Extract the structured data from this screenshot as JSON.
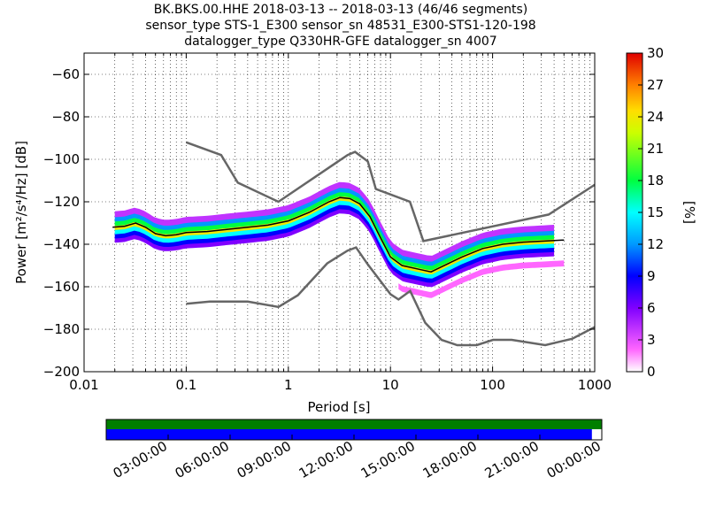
{
  "chart_data": {
    "type": "heatmap",
    "title_lines": [
      "BK.BKS.00.HHE   2018-03-13 -- 2018-03-13  (46/46 segments)",
      "sensor_type STS-1_E300 sensor_sn 48531_E300-STS1-120-198",
      "datalogger_type Q330HR-GFE datalogger_sn 4007"
    ],
    "xlabel": "Period [s]",
    "ylabel": "Power [m²/s⁴/Hz] [dB]",
    "x_scale": "log",
    "xlim": [
      0.01,
      1000
    ],
    "ylim": [
      -200,
      -50
    ],
    "x_ticks": [
      {
        "value": 0.01,
        "label": "0.01"
      },
      {
        "value": 0.1,
        "label": "0.1"
      },
      {
        "value": 1,
        "label": "1"
      },
      {
        "value": 10,
        "label": "10"
      },
      {
        "value": 100,
        "label": "100"
      },
      {
        "value": 1000,
        "label": "1000"
      }
    ],
    "y_ticks": [
      -60,
      -80,
      -100,
      -120,
      -140,
      -160,
      -180,
      -200
    ],
    "grid": "dotted",
    "colorbar": {
      "label": "[%]",
      "range": [
        0,
        30
      ],
      "ticks": [
        0,
        3,
        6,
        9,
        12,
        15,
        18,
        21,
        24,
        27,
        30
      ]
    },
    "noise_models": {
      "high": [
        [
          0.1,
          -92
        ],
        [
          0.22,
          -98
        ],
        [
          0.32,
          -111
        ],
        [
          0.8,
          -120
        ],
        [
          3.8,
          -98
        ],
        [
          4.5,
          -96.5
        ],
        [
          6,
          -101
        ],
        [
          7.2,
          -114
        ],
        [
          15.5,
          -120
        ],
        [
          21,
          -138.5
        ],
        [
          354,
          -126
        ],
        [
          1000,
          -112
        ]
      ],
      "low": [
        [
          0.1,
          -168
        ],
        [
          0.17,
          -167
        ],
        [
          0.4,
          -167
        ],
        [
          0.8,
          -169.5
        ],
        [
          1.24,
          -164
        ],
        [
          2.4,
          -149
        ],
        [
          3.8,
          -143
        ],
        [
          4.6,
          -141.5
        ],
        [
          6,
          -149.5
        ],
        [
          10,
          -163.5
        ],
        [
          12,
          -166
        ],
        [
          15.6,
          -162
        ],
        [
          21.9,
          -177
        ],
        [
          31.6,
          -185
        ],
        [
          45,
          -187.5
        ],
        [
          70,
          -187.5
        ],
        [
          101,
          -185
        ],
        [
          154,
          -185
        ],
        [
          328,
          -187.5
        ],
        [
          600,
          -184.5
        ],
        [
          1000,
          -179
        ]
      ]
    },
    "mode_curve": [
      [
        0.019,
        -132
      ],
      [
        0.025,
        -131.5
      ],
      [
        0.032,
        -130
      ],
      [
        0.04,
        -132
      ],
      [
        0.05,
        -135
      ],
      [
        0.063,
        -136
      ],
      [
        0.08,
        -135.5
      ],
      [
        0.1,
        -134.5
      ],
      [
        0.16,
        -134
      ],
      [
        0.25,
        -133
      ],
      [
        0.4,
        -132
      ],
      [
        0.63,
        -131
      ],
      [
        1,
        -129
      ],
      [
        1.6,
        -125
      ],
      [
        2.5,
        -120
      ],
      [
        3.2,
        -118
      ],
      [
        4,
        -118.5
      ],
      [
        5,
        -121
      ],
      [
        6.3,
        -127
      ],
      [
        8,
        -137
      ],
      [
        10,
        -146
      ],
      [
        13,
        -150
      ],
      [
        20,
        -152
      ],
      [
        25,
        -153
      ],
      [
        32,
        -150.5
      ],
      [
        50,
        -146
      ],
      [
        80,
        -142
      ],
      [
        126,
        -140
      ],
      [
        200,
        -139
      ],
      [
        320,
        -138.5
      ],
      [
        500,
        -138
      ]
    ],
    "density_bands": [
      {
        "percent": 6,
        "offset": -6,
        "x_range": [
          0.02,
          400
        ]
      },
      {
        "percent": 9,
        "offset": -4,
        "x_range": [
          0.02,
          400
        ]
      },
      {
        "percent": 15,
        "offset": -2,
        "x_range": [
          0.02,
          400
        ]
      },
      {
        "percent": 24,
        "offset": 0,
        "x_range": [
          0.02,
          400
        ]
      },
      {
        "percent": 18,
        "offset": 2,
        "x_range": [
          0.02,
          400
        ]
      },
      {
        "percent": 12,
        "offset": 4,
        "x_range": [
          0.02,
          400
        ]
      },
      {
        "percent": 4,
        "offset": 6,
        "x_range": [
          0.02,
          400
        ]
      },
      {
        "percent": 2,
        "offset": -11,
        "x_range": [
          12,
          500
        ]
      }
    ]
  },
  "timeline": {
    "ticks": [
      "03:00:00",
      "06:00:00",
      "09:00:00",
      "12:00:00",
      "15:00:00",
      "18:00:00",
      "21:00:00",
      "00:00:00"
    ],
    "data_coverage": 0.98,
    "gap_coverage": 1.0,
    "colors": {
      "data": "#0000ff",
      "gaps": "#007f00"
    }
  }
}
